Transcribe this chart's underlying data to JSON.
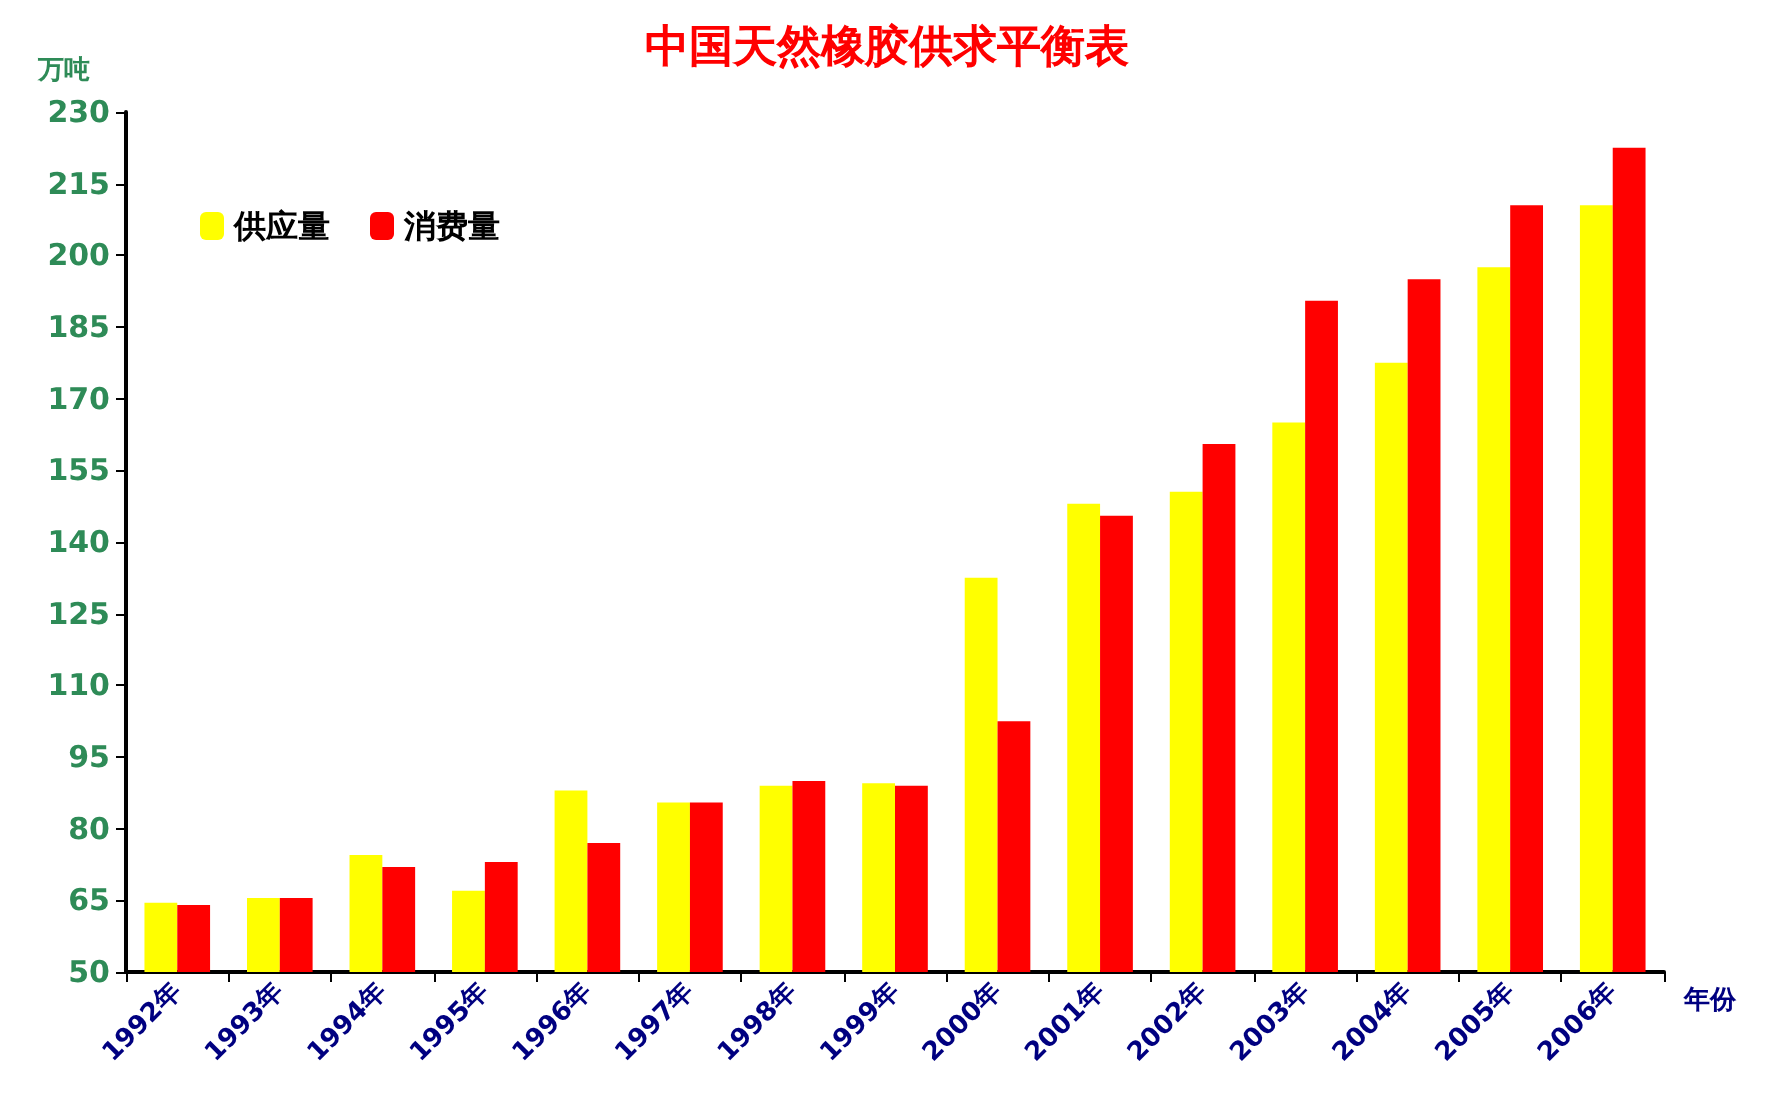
{
  "chart_data": {
    "type": "bar",
    "title": "中国天然橡胶供求平衡表",
    "ylabel": "万吨",
    "xlabel": "年份",
    "categories": [
      "1992年",
      "1993年",
      "1994年",
      "1995年",
      "1996年",
      "1997年",
      "1998年",
      "1999年",
      "2000年",
      "2001年",
      "2002年",
      "2003年",
      "2004年",
      "2005年",
      "2006年"
    ],
    "series": [
      {
        "name": "供应量",
        "color": "#ffff00",
        "values": [
          64.5,
          65.5,
          74.5,
          67,
          88,
          85.5,
          89,
          89.5,
          132.5,
          148,
          150.5,
          165,
          177.5,
          197.5,
          210.5
        ]
      },
      {
        "name": "消费量",
        "color": "#ff0000",
        "values": [
          64,
          65.5,
          72,
          73,
          77,
          85.5,
          90,
          89,
          102.5,
          145.5,
          160.5,
          190.5,
          195,
          210.5,
          222.5
        ]
      }
    ],
    "ylim": [
      50,
      230
    ],
    "yticks": [
      50,
      65,
      80,
      95,
      110,
      125,
      140,
      155,
      170,
      185,
      200,
      215,
      230
    ],
    "grid": false,
    "legend": "top left"
  }
}
